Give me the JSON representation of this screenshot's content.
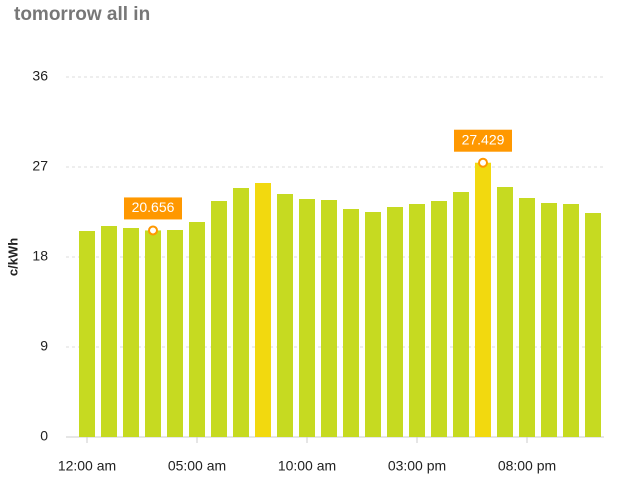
{
  "chart_data": {
    "type": "bar",
    "title": "tomorrow all in",
    "y_label": "c/kWh",
    "categories": [
      "12:00 am",
      null,
      null,
      null,
      null,
      "05:00 am",
      null,
      null,
      null,
      null,
      "10:00 am",
      null,
      null,
      null,
      null,
      "03:00 pm",
      null,
      null,
      null,
      null,
      "08:00 pm",
      null,
      null,
      null
    ],
    "values": [
      20.6,
      21.1,
      20.9,
      20.656,
      20.7,
      21.5,
      23.6,
      24.9,
      25.4,
      24.3,
      23.8,
      23.7,
      22.8,
      22.5,
      23.0,
      23.3,
      23.6,
      24.5,
      27.429,
      25.0,
      23.9,
      23.4,
      23.3,
      22.4
    ],
    "colors": [
      "#c6da21",
      "#c6da21",
      "#c6da21",
      "#c6da21",
      "#c6da21",
      "#c6da21",
      "#c6da21",
      "#c6da21",
      "#f2d90f",
      "#c6da21",
      "#c6da21",
      "#c6da21",
      "#c6da21",
      "#c6da21",
      "#c6da21",
      "#c6da21",
      "#c6da21",
      "#c6da21",
      "#f2d90f",
      "#c6da21",
      "#c6da21",
      "#c6da21",
      "#c6da21",
      "#c6da21"
    ],
    "annotated": [
      3,
      18
    ],
    "annotation_color": "#ff9800",
    "ylim": [
      0,
      36
    ],
    "yticks": [
      0,
      9,
      18,
      27,
      36
    ],
    "grid": true
  }
}
